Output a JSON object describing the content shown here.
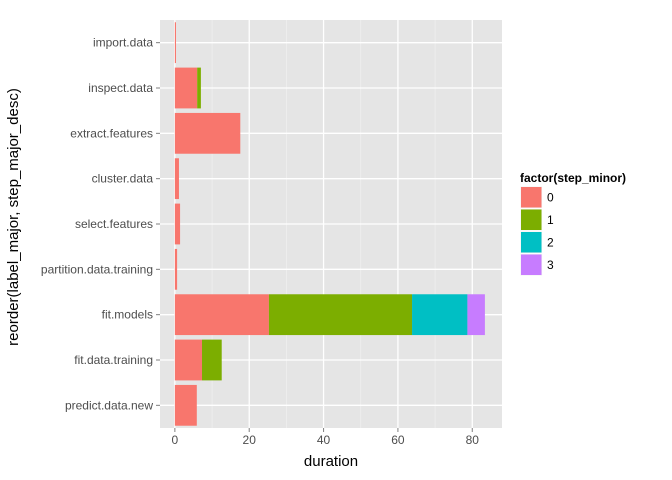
{
  "chart_data": {
    "type": "bar",
    "orientation": "horizontal",
    "stacked": true,
    "categories": [
      "import.data",
      "inspect.data",
      "extract.features",
      "cluster.data",
      "select.features",
      "partition.data.training",
      "fit.models",
      "fit.data.training",
      "predict.data.new"
    ],
    "series": [
      {
        "name": "0",
        "color": "#F8766D",
        "values": [
          0.3,
          6.0,
          17.6,
          1.1,
          1.4,
          0.6,
          25.3,
          7.3,
          5.9
        ]
      },
      {
        "name": "1",
        "color": "#7CAE00",
        "values": [
          0,
          1.0,
          0,
          0,
          0,
          0,
          38.5,
          5.3,
          0
        ]
      },
      {
        "name": "2",
        "color": "#00BFC4",
        "values": [
          0,
          0,
          0,
          0,
          0,
          0,
          14.9,
          0,
          0
        ]
      },
      {
        "name": "3",
        "color": "#C77CFF",
        "values": [
          0,
          0,
          0,
          0,
          0,
          0,
          4.7,
          0,
          0
        ]
      }
    ],
    "xlabel": "duration",
    "ylabel": "reorder(label_major, step_major_desc)",
    "xlim": [
      -4,
      88
    ],
    "xticks": [
      0,
      20,
      40,
      60,
      80
    ],
    "xtick_labels": [
      "0",
      "20",
      "40",
      "60",
      "80"
    ],
    "grid": true,
    "legend": {
      "title": "factor(step_minor)",
      "entries": [
        "0",
        "1",
        "2",
        "3"
      ],
      "position": "right"
    }
  }
}
